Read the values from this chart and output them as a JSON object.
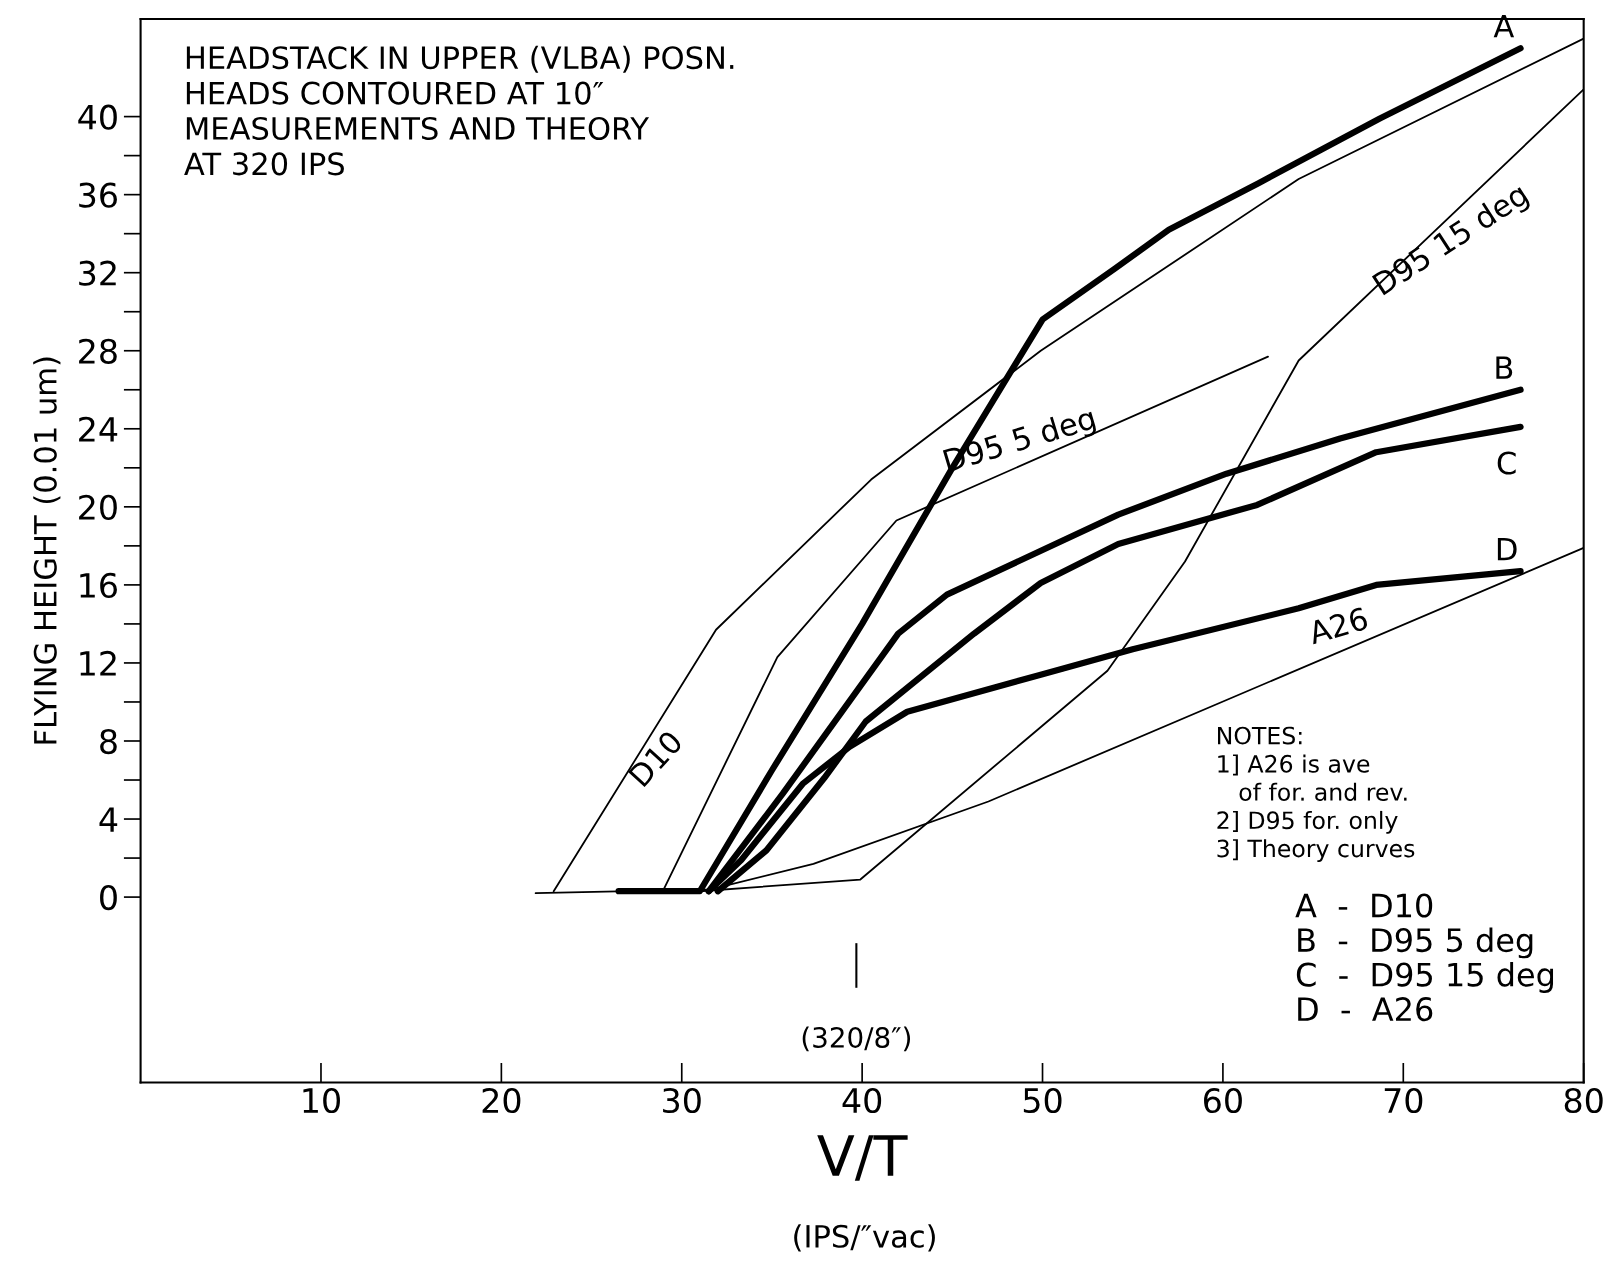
{
  "chart_data": {
    "type": "line",
    "title": "HEADSTACK IN UPPER (VLBA) POSN.\nHEADS CONTOURED AT 10″\nMEASUREMENTS AND THEORY\nAT 320 IPS",
    "xlabel": "V/T",
    "ylabel": "FLYING HEIGHT (0.01 um)",
    "xlim": [
      0,
      80
    ],
    "ylim": [
      -9.5,
      45
    ],
    "xticks": [
      10,
      20,
      30,
      40,
      50,
      60,
      70,
      80
    ],
    "yticks": [
      0,
      4,
      8,
      12,
      16,
      20,
      24,
      28,
      32,
      36,
      40
    ],
    "grid": false,
    "legend": false,
    "marker": "none",
    "line_style": "solid",
    "series": [
      {
        "name": "A",
        "color": "#000000",
        "x": [
          26.5,
          31,
          35,
          40,
          45,
          50,
          54,
          57,
          62,
          68.7,
          76.5
        ],
        "values": [
          0.3,
          0.3,
          6.5,
          14,
          22,
          29.6,
          32.2,
          34.2,
          36.6,
          39.9,
          43.5
        ]
      },
      {
        "name": "B",
        "color": "#000000",
        "x": [
          31.5,
          35.6,
          42,
          44.7,
          54.2,
          60.2,
          66.5,
          76.5
        ],
        "values": [
          0.3,
          5.3,
          13.5,
          15.5,
          19.6,
          21.7,
          23.5,
          26
        ]
      },
      {
        "name": "C",
        "color": "#000000",
        "x": [
          32,
          34.7,
          37.9,
          40.2,
          46.2,
          49.9,
          54.2,
          61.9,
          68.5,
          76.5
        ],
        "values": [
          0.3,
          2.4,
          6.1,
          9,
          13.5,
          16.1,
          18.1,
          20.1,
          22.8,
          24.1
        ]
      },
      {
        "name": "D",
        "color": "#000000",
        "x": [
          31.5,
          33.3,
          36.7,
          39.3,
          42.5,
          49.9,
          55,
          64.2,
          68.5,
          76.5
        ],
        "values": [
          0.3,
          1.9,
          5.8,
          7.7,
          9.5,
          11.4,
          12.7,
          14.8,
          16,
          16.7
        ]
      },
      {
        "name": "D10",
        "color": "#000000",
        "x": [
          22.9,
          31.9,
          40.5,
          49.9,
          64.2,
          80
        ],
        "values": [
          0.3,
          13.7,
          21.4,
          28,
          36.8,
          44
        ]
      },
      {
        "name": "D95 5 deg",
        "color": "#000000",
        "x": [
          29,
          35.3,
          41.9,
          62.5
        ],
        "values": [
          0.4,
          12.3,
          19.3,
          27.7
        ]
      },
      {
        "name": "D95 15 deg",
        "color": "#000000",
        "x": [
          31,
          39.9,
          53.6,
          57.9,
          64.2,
          80
        ],
        "values": [
          0.3,
          0.9,
          11.6,
          17.2,
          27.5,
          41.4
        ]
      },
      {
        "name": "A26",
        "color": "#000000",
        "x": [
          21.9,
          31.6,
          37.3,
          47,
          80
        ],
        "values": [
          0.2,
          0.4,
          1.7,
          4.9,
          17.9
        ]
      }
    ],
    "annotations": [
      "(320/8″)",
      "(IPS/″vac)",
      "NOTES:\n1] A26 is ave\n   of for. and rev.\n2] D95 for. only\n3] Theory curves",
      "A  -  D10\nB  -  D95 5 deg\nC  -  D95 15 deg\nD  -  A26"
    ]
  }
}
